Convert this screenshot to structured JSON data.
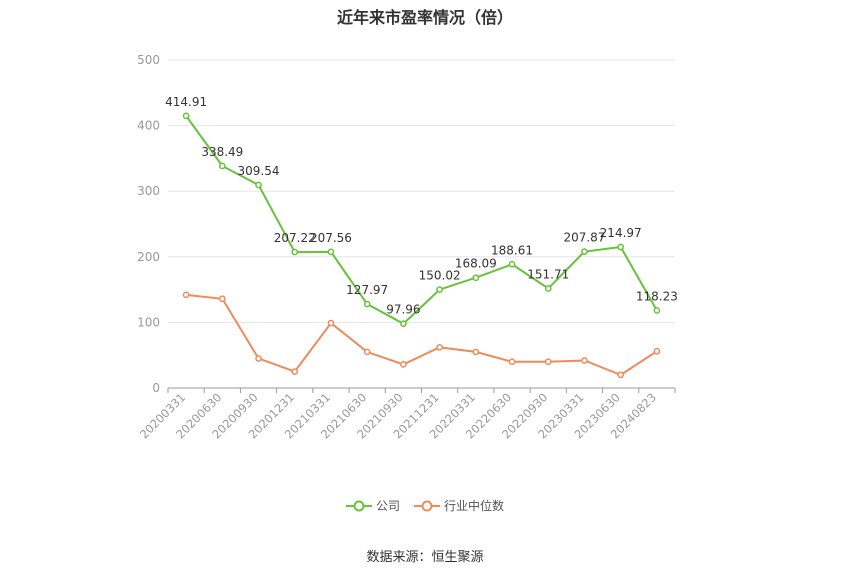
{
  "title": "近年来市盈率情况（倍）",
  "source": "数据来源：恒生聚源",
  "chart_data": {
    "type": "line",
    "title": "近年来市盈率情况（倍）",
    "categories": [
      "20200331",
      "20200630",
      "20200930",
      "20201231",
      "20210331",
      "20210630",
      "20210930",
      "20211231",
      "20220331",
      "20220630",
      "20220930",
      "20230331",
      "20230630",
      "20240823"
    ],
    "ylim": [
      0,
      500
    ],
    "yticks": [
      0,
      100,
      200,
      300,
      400,
      500
    ],
    "grid": true,
    "legend_position": "bottom",
    "series": [
      {
        "name": "公司",
        "color": "#66c23a",
        "values": [
          414.91,
          338.49,
          309.54,
          207.22,
          207.56,
          127.97,
          97.96,
          150.02,
          168.09,
          188.61,
          151.71,
          207.87,
          214.97,
          118.23
        ],
        "labels": [
          "414.91",
          "338.49",
          "309.54",
          "207.22",
          "207.56",
          "127.97",
          "97.96",
          "150.02",
          "168.09",
          "188.61",
          "151.71",
          "207.87",
          "214.97",
          "118.23"
        ]
      },
      {
        "name": "行业中位数",
        "color": "#f08a5a",
        "values": [
          142,
          136,
          45,
          25,
          99,
          55,
          36,
          62,
          55,
          40,
          40,
          42,
          20,
          56
        ]
      }
    ]
  }
}
